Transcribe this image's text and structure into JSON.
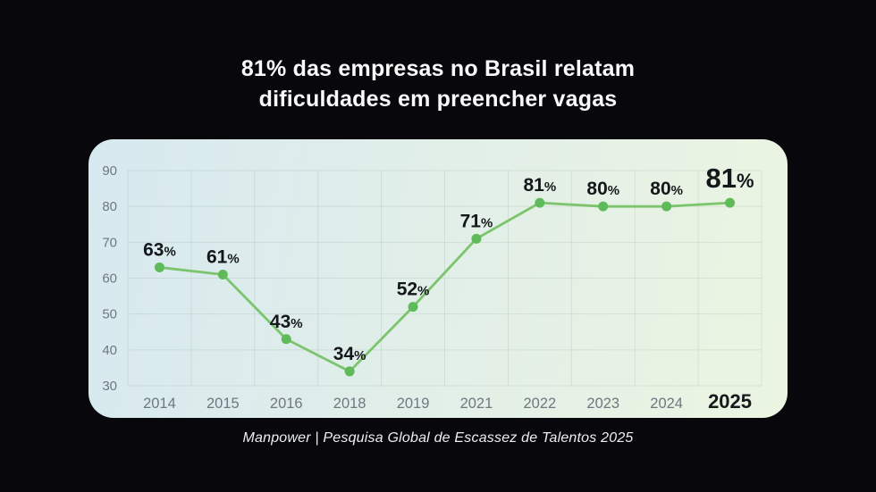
{
  "title": {
    "line1": "81% das empresas no Brasil relatam",
    "line2": "dificuldades em preencher vagas"
  },
  "source": "Manpower | Pesquisa Global de Escassez de Talentos 2025",
  "colors": {
    "page_bg": "#08080c",
    "title_text": "#fafafa",
    "source_text": "#eceff1",
    "card_gradient_start": "#d7e9f0",
    "card_gradient_mid": "#e2efe8",
    "card_gradient_end": "#ebf5e1",
    "grid": "rgba(125,150,135,0.18)",
    "line": "#7cc46e",
    "point": "#5fba59",
    "value_label": "#15181b",
    "axis_text": "#6f7781",
    "last_axis_text": "#17191d"
  },
  "chart_data": {
    "type": "line",
    "title": "81% das empresas no Brasil relatam dificuldades em preencher vagas",
    "xlabel": "",
    "ylabel": "",
    "categories": [
      "2014",
      "2015",
      "2016",
      "2018",
      "2019",
      "2021",
      "2022",
      "2023",
      "2024",
      "2025"
    ],
    "values": [
      63,
      61,
      43,
      34,
      52,
      71,
      81,
      80,
      80,
      81
    ],
    "point_labels": [
      "63%",
      "61%",
      "43%",
      "34%",
      "52%",
      "71%",
      "81%",
      "80%",
      "80%",
      "81%"
    ],
    "ylim": [
      30,
      90
    ],
    "yticks": [
      30,
      40,
      50,
      60,
      70,
      80,
      90
    ],
    "grid": true,
    "legend": false,
    "highlight_last": true
  }
}
